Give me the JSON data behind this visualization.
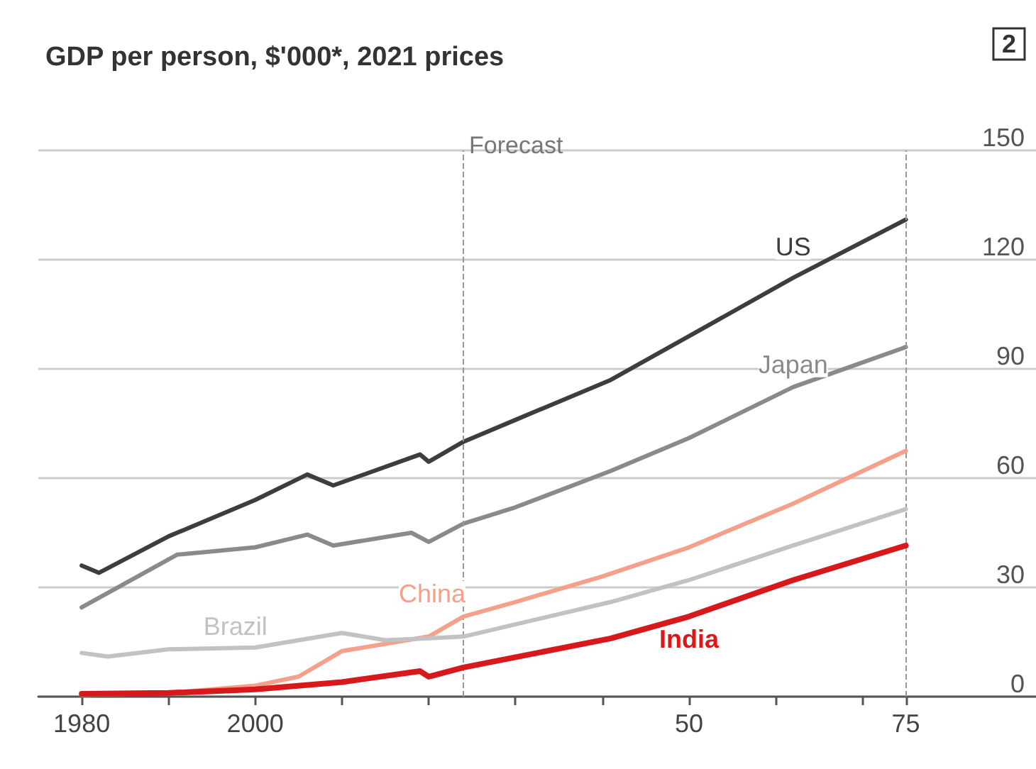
{
  "chart_data": {
    "type": "line",
    "title": "GDP per person, $'000*, 2021 prices",
    "annotations": [
      "2"
    ],
    "xlim": [
      1975,
      2090
    ],
    "xticks": [
      1980,
      {
        "value": 1990,
        "label": null
      },
      {
        "value": 2000,
        "label": "2000"
      },
      {
        "value": 2010,
        "label": null
      },
      {
        "value": 2020,
        "label": null
      },
      {
        "value": 2030,
        "label": null
      },
      {
        "value": 2040,
        "label": null
      },
      {
        "value": 2050,
        "label": "50"
      },
      {
        "value": 2060,
        "label": null
      },
      {
        "value": 2070,
        "label": null
      },
      {
        "value": 2075,
        "label": "75"
      }
    ],
    "ylim": [
      0,
      150
    ],
    "yticks": [
      0,
      30,
      60,
      90,
      120,
      150
    ],
    "grid": "y",
    "legend": false,
    "marker": "none",
    "line_style": "solid",
    "ref_lines": [
      {
        "axis": "x",
        "value": 2024,
        "label": "Forecast",
        "line_style": "dashed",
        "color": "#999999"
      },
      {
        "axis": "x",
        "value": 2075,
        "line_style": "dashed",
        "color": "#999999"
      }
    ],
    "series": [
      {
        "name": "US",
        "color": "#3d3d3d",
        "x": [
          1980,
          1982,
          1990,
          2000,
          2006,
          2009,
          2019,
          2020,
          2024,
          2030,
          2041,
          2050,
          2062,
          2075
        ],
        "values": [
          36,
          34,
          44,
          54,
          61,
          58,
          66.5,
          64.5,
          70,
          76,
          87,
          99,
          115,
          131
        ]
      },
      {
        "name": "Japan",
        "color": "#8a8a8a",
        "x": [
          1980,
          1991,
          2000,
          2006,
          2009,
          2018,
          2020,
          2024,
          2030,
          2041,
          2050,
          2062,
          2075
        ],
        "values": [
          24.5,
          39,
          41,
          44.5,
          41.5,
          45,
          42.5,
          47.5,
          52,
          62,
          71,
          85,
          96
        ]
      },
      {
        "name": "China",
        "color": "#f4a08a",
        "x": [
          1980,
          1990,
          2000,
          2005,
          2010,
          2020,
          2024,
          2030,
          2040,
          2050,
          2062,
          2075
        ],
        "values": [
          0.5,
          1,
          3,
          5.5,
          12.5,
          16.5,
          22,
          26,
          33,
          41,
          53,
          67.5
        ]
      },
      {
        "name": "Brazil",
        "color": "#c2c2c2",
        "x": [
          1980,
          1983,
          1990,
          2000,
          2010,
          2015,
          2020,
          2024,
          2041,
          2050,
          2062,
          2075
        ],
        "values": [
          12,
          11,
          13,
          13.5,
          17.5,
          15.5,
          16,
          16.5,
          26,
          32,
          41.5,
          51.5
        ]
      },
      {
        "name": "India",
        "color": "#d7191c",
        "x": [
          1980,
          1990,
          2000,
          2010,
          2019,
          2020,
          2024,
          2041,
          2050,
          2062,
          2075
        ],
        "values": [
          0.8,
          1,
          2,
          4,
          7,
          5.5,
          8,
          16,
          22,
          32,
          41.5
        ]
      }
    ]
  }
}
